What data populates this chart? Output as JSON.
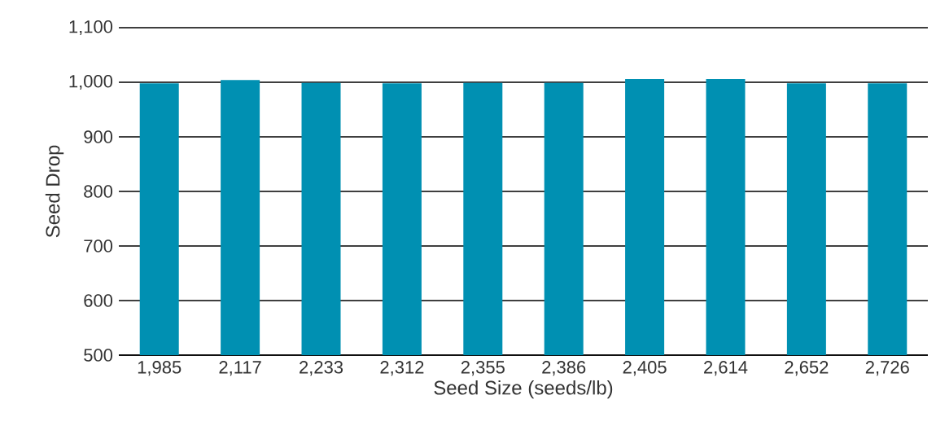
{
  "chart_data": {
    "type": "bar",
    "xlabel": "Seed Size (seeds/lb)",
    "ylabel": "Seed Drop",
    "categories": [
      "1,985",
      "2,117",
      "2,233",
      "2,312",
      "2,355",
      "2,386",
      "2,405",
      "2,614",
      "2,652",
      "2,726"
    ],
    "values": [
      998,
      1004,
      999,
      998,
      999,
      999,
      1006,
      1006,
      998,
      998
    ],
    "color": "#0090b2",
    "ylim": [
      500,
      1100
    ],
    "yticks": [
      500,
      600,
      700,
      800,
      900,
      {
        "value": 1000,
        "label": "1,000"
      },
      {
        "value": 1100,
        "label": "1,100"
      }
    ],
    "grid": "y"
  }
}
